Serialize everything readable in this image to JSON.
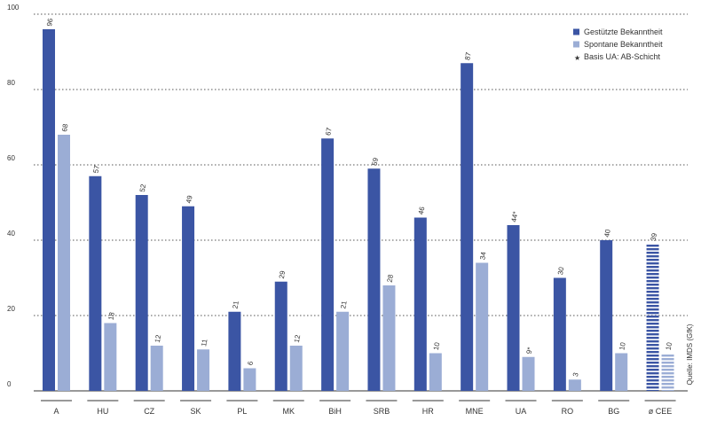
{
  "chart_data": {
    "type": "bar",
    "categories": [
      "A",
      "HU",
      "CZ",
      "SK",
      "PL",
      "MK",
      "BiH",
      "SRB",
      "HR",
      "MNE",
      "UA",
      "RO",
      "BG",
      "ø CEE"
    ],
    "series": [
      {
        "name": "Gestützte Bekanntheit",
        "color": "#3b55a4",
        "values": [
          96,
          57,
          52,
          49,
          21,
          29,
          67,
          59,
          46,
          87,
          44,
          30,
          40,
          39
        ],
        "value_labels": [
          "96",
          "57",
          "52",
          "49",
          "21",
          "29",
          "67",
          "59",
          "46",
          "87",
          "44*",
          "30",
          "40",
          "39"
        ]
      },
      {
        "name": "Spontane Bekanntheit",
        "color": "#9badd5",
        "values": [
          68,
          18,
          12,
          11,
          6,
          12,
          21,
          28,
          10,
          34,
          9,
          3,
          10,
          10
        ],
        "value_labels": [
          "68",
          "18",
          "12",
          "11",
          "6",
          "12",
          "21",
          "28",
          "10",
          "34",
          "9*",
          "3",
          "10",
          "10"
        ]
      }
    ],
    "legend_note": "Basis UA: AB-Schicht",
    "source": "Quelle: IMDS (GfK)",
    "ylim": [
      0,
      100
    ],
    "yticks": [
      0,
      20,
      40,
      60,
      80,
      100
    ],
    "grid": true,
    "legend_position": "top-right"
  }
}
